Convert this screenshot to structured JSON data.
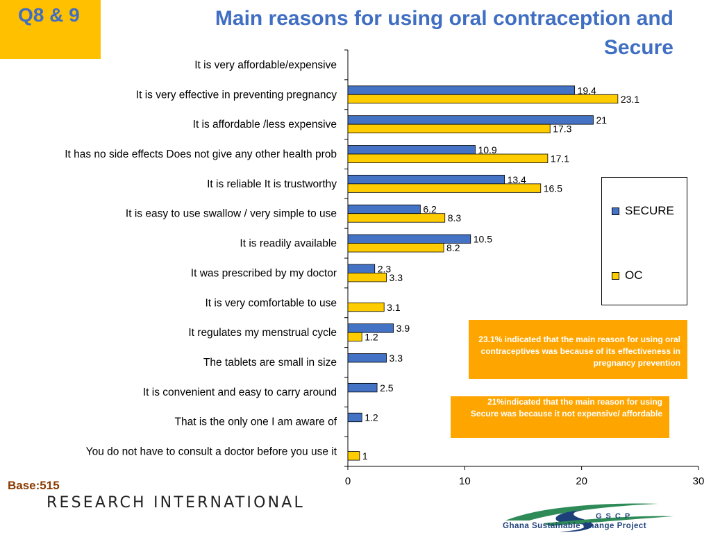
{
  "header": {
    "badge": "Q8 & 9",
    "title_line1": "Main reasons for using oral contraception and",
    "title_line2": "Secure"
  },
  "chart_data": {
    "type": "bar",
    "orientation": "horizontal",
    "title": "Main reasons for using oral contraception and Secure",
    "xlim": [
      0,
      30
    ],
    "xticks": [
      0,
      10,
      20,
      30
    ],
    "grid": false,
    "legend_position": "right",
    "categories": [
      "It  is very affordable/expensive",
      "It is very effective in preventing pregnancy",
      "It is affordable /less expensive",
      "It has no side effects   Does not give any other health prob",
      "It is reliable   It is trustworthy",
      "It is easy to use  swallow / very simple to use",
      "It is readily available",
      "It was prescribed by my doctor",
      "It is very comfortable to use",
      "It regulates my menstrual cycle",
      "The tablets are small in size",
      "It is convenient and easy to carry around",
      "That is the only one I am aware of",
      "You do not have to consult a doctor before you use it"
    ],
    "series": [
      {
        "name": "SECURE",
        "color": "#4472C4",
        "values": [
          null,
          19.4,
          21,
          10.9,
          13.4,
          6.2,
          10.5,
          2.3,
          null,
          3.9,
          3.3,
          2.5,
          1.2,
          null
        ]
      },
      {
        "name": "OC",
        "color": "#FFCC00",
        "values": [
          null,
          23.1,
          17.3,
          17.1,
          16.5,
          8.3,
          8.2,
          3.3,
          3.1,
          1.2,
          null,
          null,
          null,
          1
        ]
      }
    ]
  },
  "notes": {
    "note1": "23.1% indicated that the main reason for using oral contraceptives was because of its effectiveness in pregnancy prevention",
    "note2": "21%indicated that the main reason for using Secure was because it not expensive/ affordable"
  },
  "footer": {
    "base": "Base:515",
    "brand": "RESEARCH INTERNATIONAL",
    "partner_acronym": "GSCP",
    "partner_name": "Ghana Sustainable Change Project"
  }
}
